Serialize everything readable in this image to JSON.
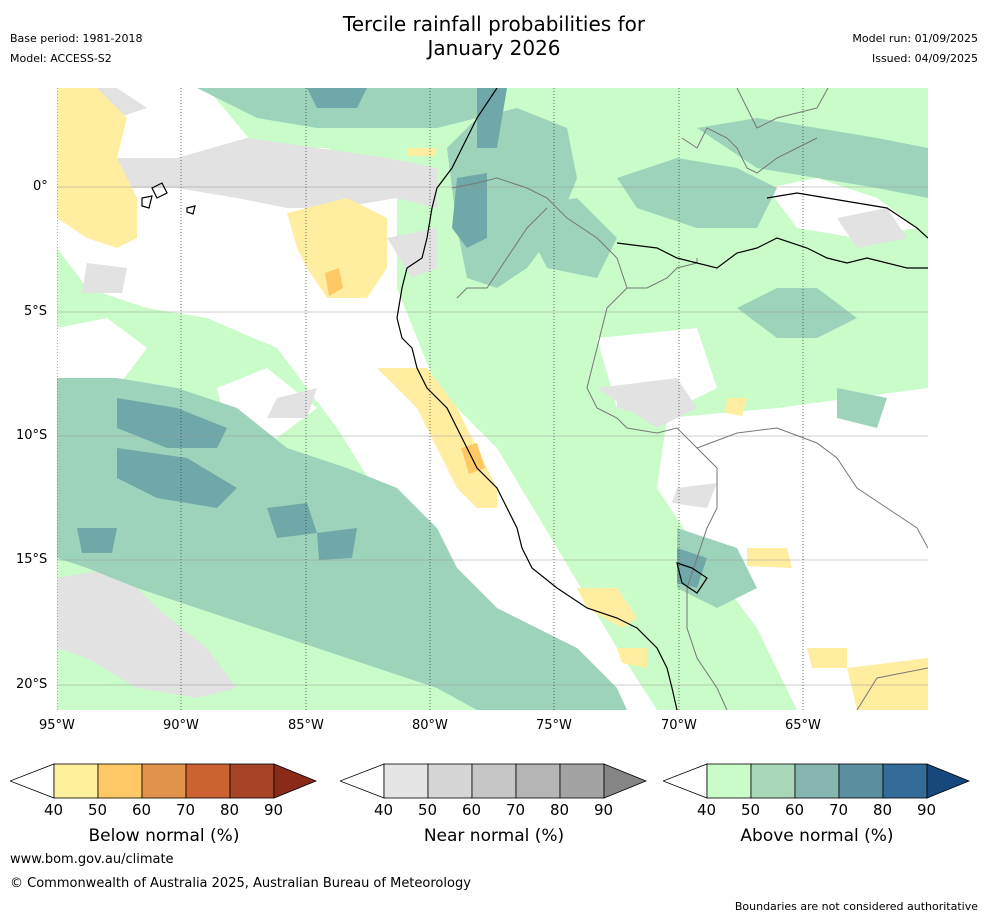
{
  "header": {
    "title_line1": "Tercile rainfall probabilities for",
    "title_line2": "January 2026",
    "base_period": "Base period: 1981-2018",
    "model": "Model: ACCESS-S2",
    "model_run": "Model run: 01/09/2025",
    "issued": "Issued: 04/09/2025"
  },
  "map": {
    "lat_labels": [
      "0°",
      "5°S",
      "10°S",
      "15°S",
      "20°S"
    ],
    "lon_labels": [
      "95°W",
      "90°W",
      "85°W",
      "80°W",
      "75°W",
      "70°W",
      "65°W"
    ],
    "region": "Western South America / East Pacific",
    "colors": {
      "below_light": "#ffeda0",
      "below_mid": "#fec965",
      "near_light": "#e2e2e2",
      "above_light": "#c9fcc9",
      "above_mid": "#9dd3bb",
      "above_dark": "#6ea8a8"
    }
  },
  "colorbars": [
    {
      "label": "Below normal (%)",
      "ticks": [
        "40",
        "50",
        "60",
        "70",
        "80",
        "90"
      ],
      "colors": [
        "#fff09c",
        "#fec964",
        "#e2934a",
        "#cc6232",
        "#a84426",
        "#8a2a18"
      ]
    },
    {
      "label": "Near normal (%)",
      "ticks": [
        "40",
        "50",
        "60",
        "70",
        "80",
        "90"
      ],
      "colors": [
        "#e5e5e5",
        "#d6d6d6",
        "#c6c6c6",
        "#b5b5b5",
        "#a3a3a3",
        "#858585"
      ]
    },
    {
      "label": "Above normal (%)",
      "ticks": [
        "40",
        "50",
        "60",
        "70",
        "80",
        "90"
      ],
      "colors": [
        "#c9fcc9",
        "#a9d8b8",
        "#86b6b0",
        "#5a8fa0",
        "#336b99",
        "#16487e"
      ]
    }
  ],
  "footer": {
    "url": "www.bom.gov.au/climate",
    "copyright": "© Commonwealth of Australia 2025, Australian Bureau of Meteorology",
    "disclaimer": "Boundaries are not considered authoritative"
  }
}
